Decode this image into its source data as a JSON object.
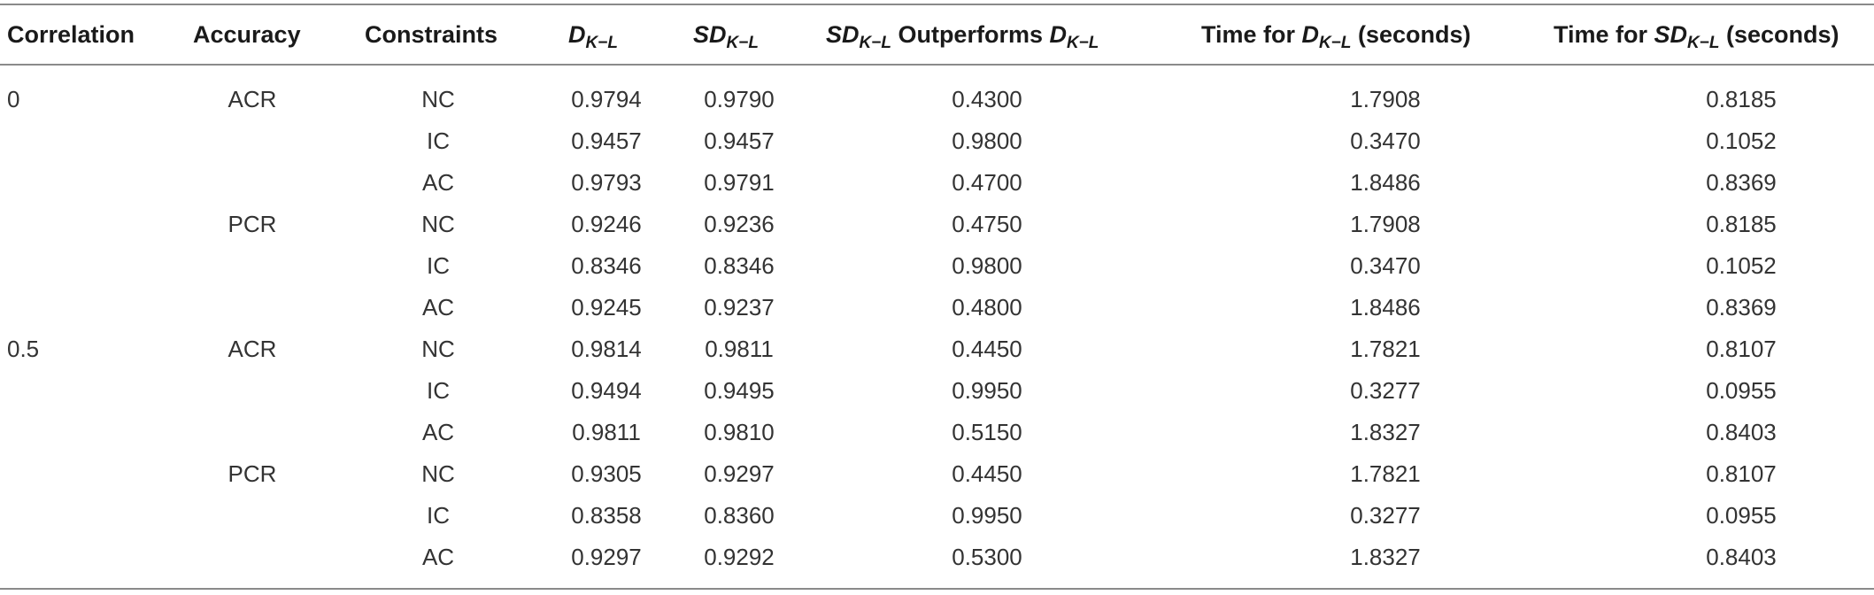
{
  "headers": {
    "correlation": "Correlation",
    "accuracy": "Accuracy",
    "constraints": "Constraints",
    "dkl_base": "D",
    "dkl_sub": "K−L",
    "sdkl_base": "SD",
    "sdkl_sub": "K−L",
    "outperforms_sd_base": "SD",
    "outperforms_sd_sub": "K−L",
    "outperforms_text": " Outperforms ",
    "outperforms_d_base": "D",
    "outperforms_d_sub": "K−L",
    "time_d_prefix": "Time for ",
    "time_d_base": "D",
    "time_d_sub": "K−L",
    "time_d_suffix": " (seconds)",
    "time_sd_prefix": "Time for ",
    "time_sd_base": "SD",
    "time_sd_sub": "K−L",
    "time_sd_suffix": " (seconds)"
  },
  "rows": [
    {
      "correlation": "0",
      "accuracy": "ACR",
      "constraint": "NC",
      "dkl": "0.9794",
      "sdkl": "0.9790",
      "outperforms": "0.4300",
      "time_d": "1.7908",
      "time_sd": "0.8185"
    },
    {
      "correlation": "",
      "accuracy": "",
      "constraint": "IC",
      "dkl": "0.9457",
      "sdkl": "0.9457",
      "outperforms": "0.9800",
      "time_d": "0.3470",
      "time_sd": "0.1052"
    },
    {
      "correlation": "",
      "accuracy": "",
      "constraint": "AC",
      "dkl": "0.9793",
      "sdkl": "0.9791",
      "outperforms": "0.4700",
      "time_d": "1.8486",
      "time_sd": "0.8369"
    },
    {
      "correlation": "",
      "accuracy": "PCR",
      "constraint": "NC",
      "dkl": "0.9246",
      "sdkl": "0.9236",
      "outperforms": "0.4750",
      "time_d": "1.7908",
      "time_sd": "0.8185"
    },
    {
      "correlation": "",
      "accuracy": "",
      "constraint": "IC",
      "dkl": "0.8346",
      "sdkl": "0.8346",
      "outperforms": "0.9800",
      "time_d": "0.3470",
      "time_sd": "0.1052"
    },
    {
      "correlation": "",
      "accuracy": "",
      "constraint": "AC",
      "dkl": "0.9245",
      "sdkl": "0.9237",
      "outperforms": "0.4800",
      "time_d": "1.8486",
      "time_sd": "0.8369"
    },
    {
      "correlation": "0.5",
      "accuracy": "ACR",
      "constraint": "NC",
      "dkl": "0.9814",
      "sdkl": "0.9811",
      "outperforms": "0.4450",
      "time_d": "1.7821",
      "time_sd": "0.8107"
    },
    {
      "correlation": "",
      "accuracy": "",
      "constraint": "IC",
      "dkl": "0.9494",
      "sdkl": "0.9495",
      "outperforms": "0.9950",
      "time_d": "0.3277",
      "time_sd": "0.0955"
    },
    {
      "correlation": "",
      "accuracy": "",
      "constraint": "AC",
      "dkl": "0.9811",
      "sdkl": "0.9810",
      "outperforms": "0.5150",
      "time_d": "1.8327",
      "time_sd": "0.8403"
    },
    {
      "correlation": "",
      "accuracy": "PCR",
      "constraint": "NC",
      "dkl": "0.9305",
      "sdkl": "0.9297",
      "outperforms": "0.4450",
      "time_d": "1.7821",
      "time_sd": "0.8107"
    },
    {
      "correlation": "",
      "accuracy": "",
      "constraint": "IC",
      "dkl": "0.8358",
      "sdkl": "0.8360",
      "outperforms": "0.9950",
      "time_d": "0.3277",
      "time_sd": "0.0955"
    },
    {
      "correlation": "",
      "accuracy": "",
      "constraint": "AC",
      "dkl": "0.9297",
      "sdkl": "0.9292",
      "outperforms": "0.5300",
      "time_d": "1.8327",
      "time_sd": "0.8403"
    }
  ]
}
